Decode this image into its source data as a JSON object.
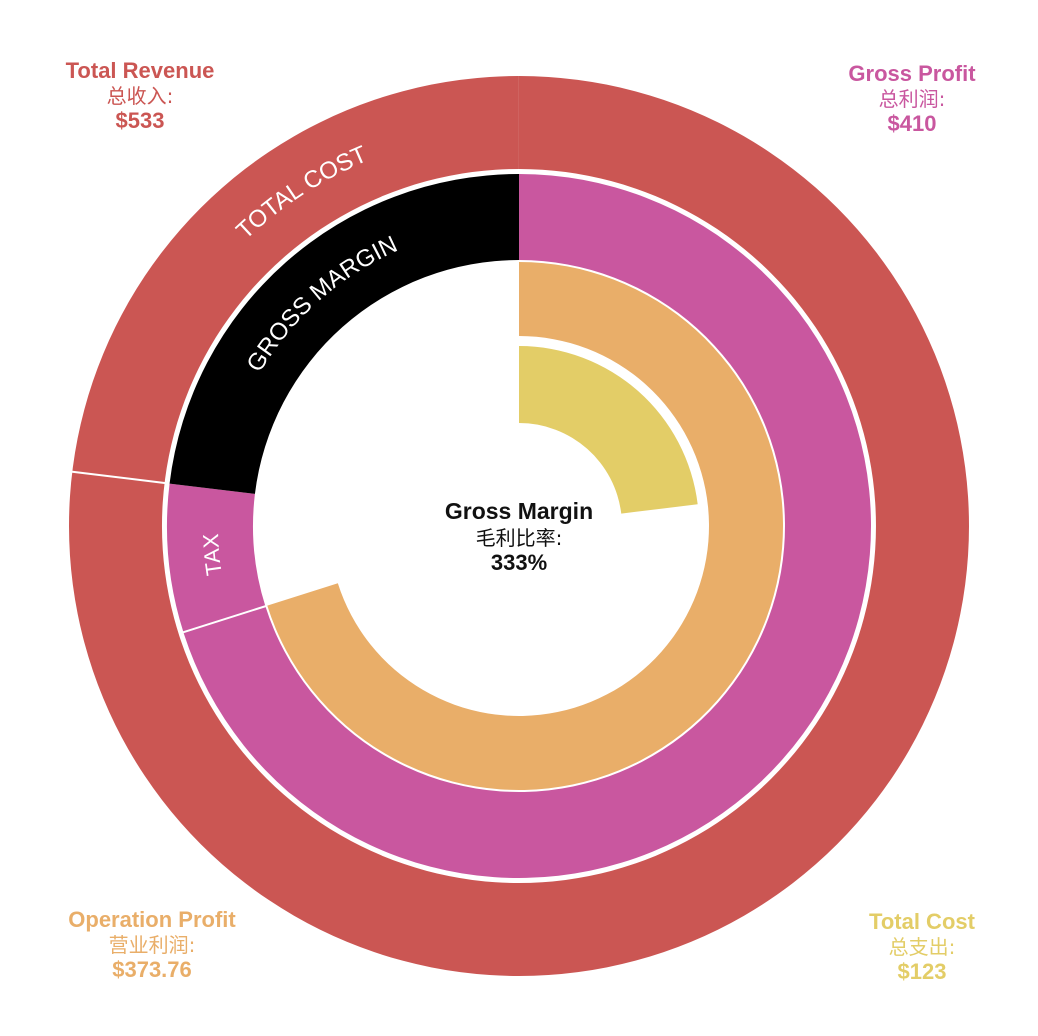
{
  "chart_data": {
    "type": "radial-bar",
    "title": "Gross Margin",
    "center": {
      "title": "Gross Margin",
      "subtitle": "毛利比率:",
      "value": "333%"
    },
    "corner_labels": [
      {
        "id": "tl",
        "title": "Total Revenue",
        "subtitle": "总收入:",
        "value": "$533",
        "color": "#cb5653"
      },
      {
        "id": "tr",
        "title": "Gross Profit",
        "subtitle": "总利润:",
        "value": "$410",
        "color": "#c9579f"
      },
      {
        "id": "bl",
        "title": "Operation Profit",
        "subtitle": "营业利润:",
        "value": "$373.76",
        "color": "#e9ae69"
      },
      {
        "id": "br",
        "title": "Total Cost",
        "subtitle": "总支出:",
        "value": "$123",
        "color": "#e3cd67"
      }
    ],
    "rings": [
      {
        "name": "Total Revenue",
        "value": 533,
        "color": "#cb5653",
        "segments": [
          {
            "label": "TOTAL COST",
            "value": 123,
            "color": "#cb5653"
          },
          {
            "label": "",
            "value": 410,
            "color": "#cb5653"
          }
        ]
      },
      {
        "name": "Gross Profit",
        "value": 410,
        "color": "#c9579f",
        "segments": [
          {
            "label": "GROSS MARGIN",
            "value": 123,
            "color": "#000000"
          },
          {
            "label": "TAX",
            "value": 36.24,
            "color": "#c9579f"
          },
          {
            "label": "",
            "value": 373.76,
            "color": "#c9579f"
          }
        ]
      },
      {
        "name": "Operation Profit",
        "value": 373.76,
        "color": "#e9ae69"
      },
      {
        "name": "Total Cost",
        "value": 123,
        "color": "#e3cd67"
      }
    ],
    "max_value": 533
  }
}
